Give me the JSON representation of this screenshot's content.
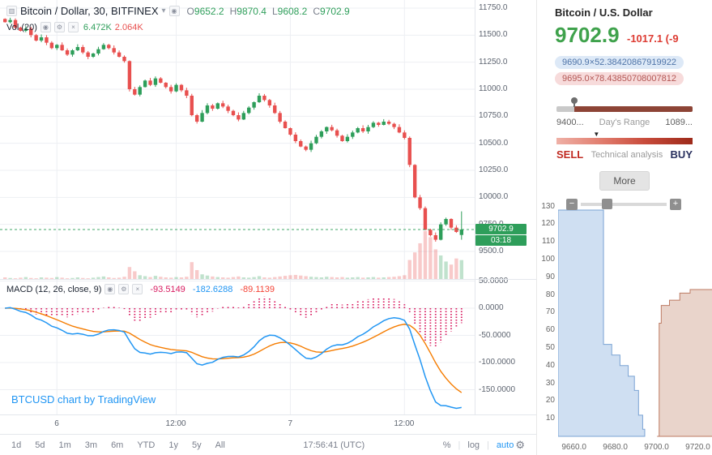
{
  "icons": {
    "series": "▥",
    "chevron_down": "▾",
    "eye": "◉",
    "gear": "⚙",
    "close": "×",
    "minus": "−",
    "plus": "+",
    "marker_down": "▼"
  },
  "chart": {
    "title": "Bitcoin / Dollar, 30, BITFINEX",
    "ohlc": {
      "o_label": "O",
      "o_value": "9652.2",
      "h_label": "H",
      "h_value": "9870.4",
      "l_label": "L",
      "l_value": "9608.2",
      "c_label": "C",
      "c_value": "9702.9"
    },
    "volume": {
      "label": "Vol (20)",
      "ma1": "6.472K",
      "ma2": "2.064K"
    },
    "macd": {
      "label": "MACD (12, 26, close, 9)",
      "hist_value": "-93.5149",
      "macd_value": "-182.6288",
      "signal_value": "-89.1139"
    },
    "last_price_label": "9702.9",
    "countdown": "03:18",
    "attribution": "BTCUSD chart by TradingView",
    "clock": "17:56:41 (UTC)",
    "range_buttons": [
      "1d",
      "5d",
      "1m",
      "3m",
      "6m",
      "YTD",
      "1y",
      "5y",
      "All"
    ],
    "scale_buttons": [
      "%",
      "log",
      "auto"
    ]
  },
  "panel": {
    "title": "Bitcoin / U.S. Dollar",
    "price": "9702.9",
    "change": "-1017.1 (-9",
    "bid": "9690.9×52.38420867919922",
    "ask": "9695.0×78.43850708007812",
    "range_low": "9400...",
    "range_label": "Day's Range",
    "range_high": "1089...",
    "sell_label": "SELL",
    "ta_label": "Technical analysis",
    "buy_label": "BUY",
    "more_label": "More"
  },
  "chart_data": [
    {
      "type": "candlestick",
      "symbol": "BTCUSD",
      "exchange": "BITFINEX",
      "interval_minutes": 30,
      "title": "Bitcoin / Dollar, 30, BITFINEX",
      "y_tick_labels": [
        "11750.0",
        "11500.0",
        "11250.0",
        "11000.0",
        "10750.0",
        "10500.0",
        "10250.0",
        "10000.0",
        "9750.0",
        "9500.0"
      ],
      "x_tick_labels": [
        "6",
        "12:00",
        "7",
        "12:00"
      ],
      "ylim": [
        9400,
        11800
      ],
      "closes": [
        11620,
        11640,
        11570,
        11540,
        11560,
        11500,
        11450,
        11480,
        11430,
        11380,
        11410,
        11360,
        11320,
        11360,
        11390,
        11340,
        11300,
        11330,
        11370,
        11410,
        11380,
        11340,
        11300,
        11260,
        11000,
        10950,
        11020,
        11080,
        11040,
        11100,
        11060,
        11020,
        10980,
        11040,
        10990,
        10940,
        10760,
        10700,
        10780,
        10850,
        10820,
        10870,
        10840,
        10800,
        10760,
        10720,
        10780,
        10830,
        10880,
        10940,
        10900,
        10850,
        10780,
        10700,
        10640,
        10580,
        10520,
        10470,
        10440,
        10500,
        10560,
        10610,
        10650,
        10620,
        10570,
        10520,
        10560,
        10600,
        10640,
        10610,
        10650,
        10690,
        10670,
        10700,
        10680,
        10650,
        10600,
        10550,
        10300,
        10000,
        9900,
        9700,
        9650,
        9608,
        9750,
        9800,
        9720,
        9680,
        9702.9
      ],
      "volumes_k": [
        0.8,
        0.6,
        0.5,
        0.7,
        0.9,
        0.6,
        0.5,
        0.8,
        0.7,
        0.6,
        0.9,
        0.7,
        0.5,
        0.6,
        0.8,
        0.6,
        0.5,
        0.7,
        0.9,
        1.1,
        0.8,
        0.6,
        0.7,
        1.0,
        4.2,
        2.8,
        1.5,
        1.2,
        0.9,
        1.3,
        1.0,
        0.8,
        0.7,
        0.9,
        0.8,
        1.0,
        5.8,
        3.2,
        1.8,
        1.4,
        1.1,
        0.9,
        0.8,
        0.7,
        0.9,
        1.1,
        0.8,
        0.7,
        0.9,
        1.2,
        0.8,
        0.7,
        0.9,
        1.1,
        1.3,
        1.5,
        1.6,
        1.4,
        1.2,
        1.0,
        0.9,
        0.8,
        1.0,
        0.9,
        0.8,
        0.9,
        0.7,
        0.8,
        0.9,
        0.7,
        0.8,
        0.9,
        0.7,
        0.8,
        0.9,
        1.0,
        1.2,
        1.5,
        6.5,
        9.0,
        12.0,
        16.0,
        14.0,
        10.0,
        8.0,
        6.0,
        5.0,
        7.0,
        6.472
      ],
      "current_candle": {
        "open": 9652.2,
        "high": 9870.4,
        "low": 9608.2,
        "close": 9702.9
      },
      "last_price": 9702.9,
      "indicator": {
        "name": "MACD (12, 26, close, 9)",
        "histogram": -93.5149,
        "macd": -182.6288,
        "signal": -89.1139,
        "y_tick_labels": [
          "50.0000",
          "0.0000",
          "-50.0000",
          "-100.0000",
          "-150.0000"
        ]
      }
    },
    {
      "type": "area",
      "name": "order book depth",
      "x_tick_labels": [
        "9660.0",
        "9680.0",
        "9700.0",
        "9720.0"
      ],
      "y_tick_labels": [
        "130",
        "120",
        "110",
        "100",
        "90",
        "80",
        "70",
        "60",
        "50",
        "40",
        "30",
        "20",
        "10"
      ],
      "xlim": [
        9652,
        9727
      ],
      "ylim": [
        0,
        135
      ],
      "bids_cumulative": [
        [
          9652,
          128
        ],
        [
          9673,
          128
        ],
        [
          9674,
          52
        ],
        [
          9678,
          46
        ],
        [
          9682,
          40
        ],
        [
          9686,
          34
        ],
        [
          9689,
          26
        ],
        [
          9691,
          12
        ],
        [
          9693,
          4
        ],
        [
          9694,
          0
        ]
      ],
      "asks_cumulative": [
        [
          9700,
          0
        ],
        [
          9701,
          64
        ],
        [
          9702,
          74
        ],
        [
          9706,
          77
        ],
        [
          9711,
          81
        ],
        [
          9716,
          83
        ],
        [
          9727,
          85
        ]
      ]
    }
  ]
}
